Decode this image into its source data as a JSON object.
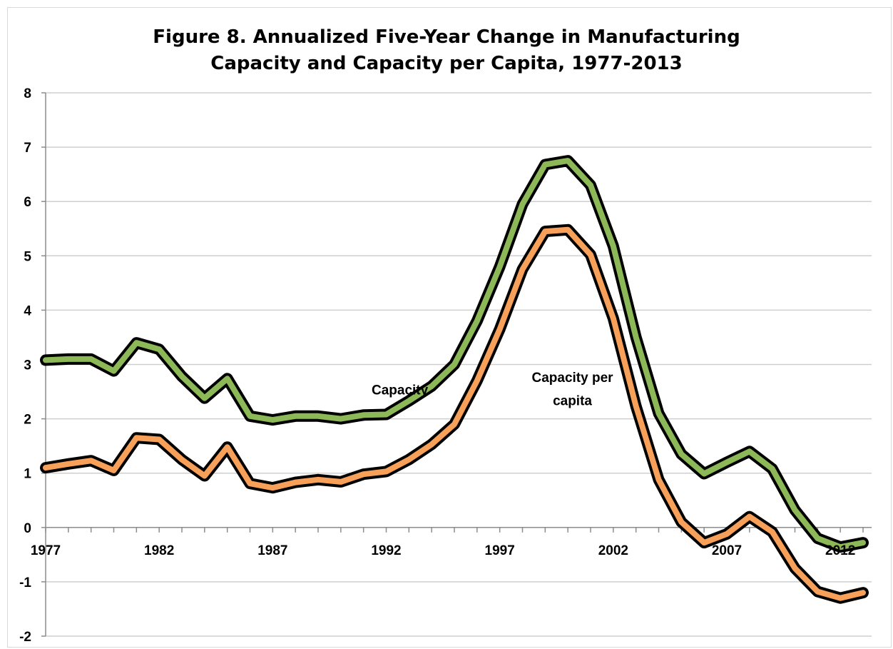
{
  "chart_data": {
    "type": "line",
    "title_line1": "Figure 8. Annualized Five-Year Change in Manufacturing",
    "title_line2": "Capacity and Capacity per Capita, 1977-2013",
    "xlabel": "",
    "ylabel": "",
    "ylim": [
      -2,
      8
    ],
    "yticks": [
      "-2",
      "-1",
      "0",
      "1",
      "2",
      "3",
      "4",
      "5",
      "6",
      "7",
      "8"
    ],
    "xlim": [
      1977,
      2013
    ],
    "xticks": [
      "1977",
      "1982",
      "1987",
      "1992",
      "1997",
      "2002",
      "2007",
      "2012"
    ],
    "grid": "horizontal",
    "x": [
      1977,
      1978,
      1979,
      1980,
      1981,
      1982,
      1983,
      1984,
      1985,
      1986,
      1987,
      1988,
      1989,
      1990,
      1991,
      1992,
      1993,
      1994,
      1995,
      1996,
      1997,
      1998,
      1999,
      2000,
      2001,
      2002,
      2003,
      2004,
      2005,
      2006,
      2007,
      2008,
      2009,
      2010,
      2011,
      2012,
      2013
    ],
    "series": [
      {
        "name": "Capacity",
        "color": "#8db857",
        "values": [
          3.08,
          3.1,
          3.1,
          2.88,
          3.4,
          3.28,
          2.78,
          2.38,
          2.74,
          2.05,
          1.98,
          2.05,
          2.05,
          2.0,
          2.07,
          2.08,
          2.33,
          2.6,
          3.0,
          3.8,
          4.8,
          5.95,
          6.68,
          6.75,
          6.3,
          5.18,
          3.5,
          2.1,
          1.35,
          0.99,
          1.2,
          1.4,
          1.08,
          0.32,
          -0.2,
          -0.36,
          -0.28
        ]
      },
      {
        "name": "Capacity per capita",
        "color": "#f7a05a",
        "values": [
          1.1,
          1.17,
          1.23,
          1.05,
          1.65,
          1.62,
          1.25,
          0.95,
          1.48,
          0.81,
          0.73,
          0.83,
          0.88,
          0.84,
          0.98,
          1.03,
          1.25,
          1.53,
          1.9,
          2.7,
          3.65,
          4.75,
          5.45,
          5.48,
          5.02,
          3.85,
          2.23,
          0.88,
          0.1,
          -0.28,
          -0.12,
          0.2,
          -0.08,
          -0.75,
          -1.18,
          -1.3,
          -1.2
        ]
      }
    ],
    "annotations": [
      {
        "label": "Capacity",
        "x": 1992.6,
        "y": 2.45
      },
      {
        "label": "Capacity per",
        "x": 2000.2,
        "y": 2.68
      },
      {
        "label": "capita",
        "x": 2000.2,
        "y": 2.25
      }
    ]
  }
}
